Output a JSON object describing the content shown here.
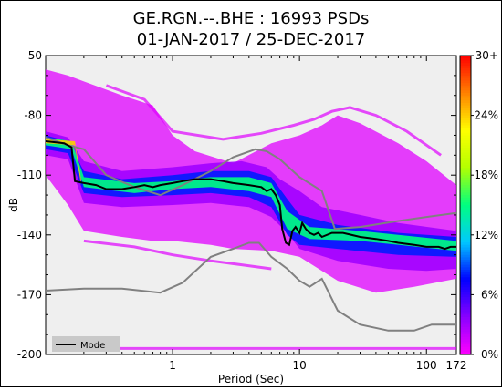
{
  "chart_data": {
    "type": "heatmap",
    "title_line1": "GE.RGN.--.BHE : 16993 PSDs",
    "title_line2": "01-JAN-2017 / 25-DEC-2017",
    "xlabel": "Period (Sec)",
    "ylabel": "dB",
    "x_scale": "log",
    "xlim": [
      0.1,
      172
    ],
    "ylim": [
      -200,
      -50
    ],
    "x_ticks": [
      {
        "value": 1,
        "label": "1"
      },
      {
        "value": 10,
        "label": "10"
      },
      {
        "value": 100,
        "label": "100"
      },
      {
        "value": 172,
        "label": "172"
      }
    ],
    "y_ticks": [
      {
        "value": -50,
        "label": "-50"
      },
      {
        "value": -80,
        "label": "-80"
      },
      {
        "value": -110,
        "label": "-110"
      },
      {
        "value": -140,
        "label": "-140"
      },
      {
        "value": -170,
        "label": "-170"
      },
      {
        "value": -200,
        "label": "-200"
      }
    ],
    "colorbar": {
      "colors": [
        "#ff00ff",
        "#8a00ff",
        "#0000ff",
        "#00c8ff",
        "#00ff80",
        "#b4ff00",
        "#ffff00",
        "#ff8000",
        "#ff0000"
      ],
      "ticks": [
        {
          "value": 0,
          "label": "0%"
        },
        {
          "value": 6,
          "label": "6%"
        },
        {
          "value": 12,
          "label": "12%"
        },
        {
          "value": 18,
          "label": "18%"
        },
        {
          "value": 24,
          "label": "24%"
        },
        {
          "value": 30,
          "label": "30+"
        }
      ],
      "range": [
        0,
        30
      ]
    },
    "legend": {
      "label": "Mode",
      "position": "bottom-left"
    },
    "mode_series": {
      "name": "Mode",
      "color": "#000000",
      "points": [
        [
          0.1,
          -93
        ],
        [
          0.14,
          -94
        ],
        [
          0.16,
          -96
        ],
        [
          0.17,
          -113
        ],
        [
          0.2,
          -114
        ],
        [
          0.25,
          -115
        ],
        [
          0.3,
          -117
        ],
        [
          0.4,
          -117
        ],
        [
          0.5,
          -116
        ],
        [
          0.6,
          -115
        ],
        [
          0.7,
          -116
        ],
        [
          0.8,
          -115
        ],
        [
          1.0,
          -114
        ],
        [
          1.2,
          -113
        ],
        [
          1.5,
          -112
        ],
        [
          2.0,
          -112
        ],
        [
          2.5,
          -113
        ],
        [
          3.0,
          -114
        ],
        [
          4.0,
          -115
        ],
        [
          5.0,
          -116
        ],
        [
          5.5,
          -118
        ],
        [
          6.0,
          -117
        ],
        [
          6.5,
          -120
        ],
        [
          7.0,
          -125
        ],
        [
          7.3,
          -137
        ],
        [
          7.8,
          -144
        ],
        [
          8.3,
          -145
        ],
        [
          8.8,
          -138
        ],
        [
          9.3,
          -136
        ],
        [
          10,
          -139
        ],
        [
          10.5,
          -134
        ],
        [
          11.2,
          -137
        ],
        [
          12,
          -139
        ],
        [
          13,
          -140
        ],
        [
          14,
          -139
        ],
        [
          15,
          -141
        ],
        [
          18,
          -139
        ],
        [
          22,
          -139
        ],
        [
          30,
          -141
        ],
        [
          40,
          -142
        ],
        [
          50,
          -143
        ],
        [
          60,
          -144
        ],
        [
          80,
          -145
        ],
        [
          100,
          -146
        ],
        [
          125,
          -146
        ],
        [
          140,
          -147
        ],
        [
          155,
          -146
        ],
        [
          172,
          -146
        ]
      ]
    },
    "noise_models": [
      {
        "name": "high",
        "color": "#808080",
        "points": [
          [
            0.1,
            -91
          ],
          [
            0.15,
            -95
          ],
          [
            0.2,
            -97
          ],
          [
            0.3,
            -110
          ],
          [
            0.5,
            -116
          ],
          [
            0.8,
            -120
          ],
          [
            1.2,
            -115
          ],
          [
            2.0,
            -108
          ],
          [
            3.0,
            -101
          ],
          [
            4.5,
            -97
          ],
          [
            5.5,
            -98
          ],
          [
            7.0,
            -102
          ],
          [
            10,
            -111
          ],
          [
            15,
            -118
          ],
          [
            19,
            -137
          ],
          [
            30,
            -136
          ],
          [
            60,
            -133
          ],
          [
            100,
            -131
          ],
          [
            172,
            -129
          ]
        ]
      },
      {
        "name": "low",
        "color": "#808080",
        "points": [
          [
            0.1,
            -168
          ],
          [
            0.2,
            -167
          ],
          [
            0.4,
            -167
          ],
          [
            0.8,
            -169
          ],
          [
            1.2,
            -164
          ],
          [
            2.0,
            -151
          ],
          [
            3.0,
            -147
          ],
          [
            4.0,
            -144
          ],
          [
            4.8,
            -144
          ],
          [
            6.0,
            -151
          ],
          [
            8.0,
            -157
          ],
          [
            10,
            -163
          ],
          [
            12,
            -166
          ],
          [
            15,
            -162
          ],
          [
            20,
            -178
          ],
          [
            30,
            -185
          ],
          [
            50,
            -188
          ],
          [
            80,
            -188
          ],
          [
            110,
            -185
          ],
          [
            172,
            -185
          ]
        ]
      }
    ],
    "density_bands": [
      {
        "level": 1,
        "upper": [
          [
            0.1,
            -57
          ],
          [
            0.15,
            -60
          ],
          [
            0.2,
            -63
          ],
          [
            0.4,
            -70
          ],
          [
            0.7,
            -75
          ],
          [
            1.0,
            -90
          ],
          [
            1.5,
            -98
          ],
          [
            3.0,
            -104
          ],
          [
            6.0,
            -94
          ],
          [
            10,
            -90
          ],
          [
            15,
            -85
          ],
          [
            20,
            -80
          ],
          [
            30,
            -84
          ],
          [
            60,
            -94
          ],
          [
            100,
            -103
          ],
          [
            172,
            -115
          ]
        ],
        "lower": [
          [
            0.1,
            -110
          ],
          [
            0.15,
            -125
          ],
          [
            0.2,
            -138
          ],
          [
            0.4,
            -141
          ],
          [
            0.7,
            -143
          ],
          [
            1.0,
            -143
          ],
          [
            2.0,
            -145
          ],
          [
            3.0,
            -147
          ],
          [
            6.0,
            -148
          ],
          [
            10,
            -151
          ],
          [
            20,
            -163
          ],
          [
            40,
            -169
          ],
          [
            80,
            -166
          ],
          [
            172,
            -162
          ]
        ]
      },
      {
        "level": 3,
        "upper": [
          [
            0.1,
            -88
          ],
          [
            0.15,
            -91
          ],
          [
            0.2,
            -103
          ],
          [
            0.4,
            -108
          ],
          [
            1.0,
            -106
          ],
          [
            2.0,
            -104
          ],
          [
            3.5,
            -103
          ],
          [
            5.5,
            -106
          ],
          [
            7.0,
            -112
          ],
          [
            10,
            -118
          ],
          [
            15,
            -126
          ],
          [
            30,
            -130
          ],
          [
            60,
            -134
          ],
          [
            172,
            -138
          ]
        ],
        "lower": [
          [
            0.1,
            -100
          ],
          [
            0.15,
            -102
          ],
          [
            0.2,
            -124
          ],
          [
            0.4,
            -126
          ],
          [
            1.0,
            -125
          ],
          [
            2.0,
            -124
          ],
          [
            4.0,
            -126
          ],
          [
            6.0,
            -131
          ],
          [
            8.0,
            -139
          ],
          [
            10,
            -147
          ],
          [
            20,
            -153
          ],
          [
            50,
            -157
          ],
          [
            100,
            -158
          ],
          [
            172,
            -157
          ]
        ]
      },
      {
        "level": 8,
        "upper": [
          [
            0.1,
            -90
          ],
          [
            0.15,
            -93
          ],
          [
            0.2,
            -108
          ],
          [
            0.4,
            -112
          ],
          [
            1.0,
            -110
          ],
          [
            2.0,
            -108
          ],
          [
            4.0,
            -108
          ],
          [
            6.0,
            -111
          ],
          [
            8.0,
            -122
          ],
          [
            10,
            -130
          ],
          [
            20,
            -135
          ],
          [
            60,
            -139
          ],
          [
            172,
            -141
          ]
        ],
        "lower": [
          [
            0.1,
            -97
          ],
          [
            0.15,
            -99
          ],
          [
            0.2,
            -119
          ],
          [
            0.4,
            -121
          ],
          [
            1.0,
            -120
          ],
          [
            2.0,
            -119
          ],
          [
            4.0,
            -121
          ],
          [
            6.0,
            -126
          ],
          [
            8.0,
            -140
          ],
          [
            10,
            -145
          ],
          [
            20,
            -147
          ],
          [
            60,
            -150
          ],
          [
            172,
            -151
          ]
        ]
      },
      {
        "level": 15,
        "upper": [
          [
            0.1,
            -91
          ],
          [
            0.16,
            -93
          ],
          [
            0.2,
            -111
          ],
          [
            0.5,
            -114
          ],
          [
            1.0,
            -113
          ],
          [
            2.0,
            -111
          ],
          [
            4.0,
            -111
          ],
          [
            6.0,
            -114
          ],
          [
            8.0,
            -128
          ],
          [
            12,
            -136
          ],
          [
            30,
            -138
          ],
          [
            172,
            -143
          ]
        ],
        "lower": [
          [
            0.1,
            -95
          ],
          [
            0.16,
            -97
          ],
          [
            0.2,
            -116
          ],
          [
            0.5,
            -119
          ],
          [
            1.0,
            -117
          ],
          [
            2.0,
            -116
          ],
          [
            4.0,
            -118
          ],
          [
            6.0,
            -121
          ],
          [
            8.0,
            -137
          ],
          [
            12,
            -142
          ],
          [
            30,
            -143
          ],
          [
            172,
            -148
          ]
        ]
      },
      {
        "level": 24,
        "upper": [
          [
            0.1,
            -92
          ],
          [
            0.17,
            -93
          ],
          [
            0.19,
            -112
          ]
        ],
        "lower": [
          [
            0.1,
            -94
          ],
          [
            0.17,
            -95
          ],
          [
            0.19,
            -115
          ]
        ]
      }
    ],
    "scatter_tracks": [
      {
        "level": 1,
        "points": [
          [
            0.3,
            -65
          ],
          [
            0.6,
            -72
          ],
          [
            1.0,
            -88
          ],
          [
            2.5,
            -92
          ],
          [
            5.0,
            -89
          ],
          [
            9.0,
            -85
          ],
          [
            13,
            -82
          ],
          [
            18,
            -78
          ],
          [
            25,
            -76
          ],
          [
            40,
            -80
          ],
          [
            70,
            -88
          ],
          [
            130,
            -100
          ]
        ]
      },
      {
        "level": 1,
        "points": [
          [
            0.2,
            -143
          ],
          [
            0.5,
            -146
          ],
          [
            1.0,
            -150
          ],
          [
            2.0,
            -153
          ],
          [
            3.5,
            -155
          ],
          [
            6.0,
            -157
          ]
        ]
      },
      {
        "level": 1,
        "points": [
          [
            0.12,
            -197
          ],
          [
            1.0,
            -197
          ],
          [
            10,
            -197
          ],
          [
            100,
            -197
          ],
          [
            172,
            -197
          ]
        ]
      }
    ]
  }
}
